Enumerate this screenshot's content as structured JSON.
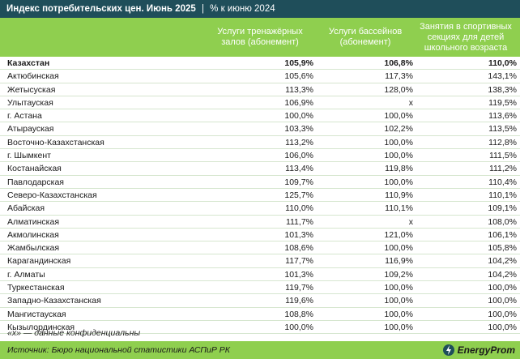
{
  "title": {
    "main": "Индекс потребительских цен. Июнь 2025",
    "separator": "|",
    "sub": "% к июню 2024"
  },
  "columns": [
    "Услуги тренажёрных залов (абонемент)",
    "Услуги бассейнов (абонемент)",
    "Занятия в спортивных секциях для детей школьного возраста"
  ],
  "rows": [
    {
      "region": "Казахстан",
      "gym": "105,9%",
      "pool": "106,8%",
      "sports": "110,0%",
      "bold": true
    },
    {
      "region": "Актюбинская",
      "gym": "105,6%",
      "pool": "117,3%",
      "sports": "143,1%"
    },
    {
      "region": "Жетысуская",
      "gym": "113,3%",
      "pool": "128,0%",
      "sports": "138,3%"
    },
    {
      "region": "Улытауская",
      "gym": "106,9%",
      "pool": "x",
      "sports": "119,5%"
    },
    {
      "region": "г. Астана",
      "gym": "100,0%",
      "pool": "100,0%",
      "sports": "113,6%"
    },
    {
      "region": "Атырауская",
      "gym": "103,3%",
      "pool": "102,2%",
      "sports": "113,5%"
    },
    {
      "region": "Восточно-Казахстанская",
      "gym": "113,2%",
      "pool": "100,0%",
      "sports": "112,8%"
    },
    {
      "region": "г. Шымкент",
      "gym": "106,0%",
      "pool": "100,0%",
      "sports": "111,5%"
    },
    {
      "region": "Костанайская",
      "gym": "113,4%",
      "pool": "119,8%",
      "sports": "111,2%"
    },
    {
      "region": "Павлодарская",
      "gym": "109,7%",
      "pool": "100,0%",
      "sports": "110,4%"
    },
    {
      "region": "Северо-Казахстанская",
      "gym": "125,7%",
      "pool": "110,9%",
      "sports": "110,1%"
    },
    {
      "region": "Абайская",
      "gym": "110,0%",
      "pool": "110,1%",
      "sports": "109,1%"
    },
    {
      "region": "Алматинская",
      "gym": "111,7%",
      "pool": "x",
      "sports": "108,0%"
    },
    {
      "region": "Акмолинская",
      "gym": "101,3%",
      "pool": "121,0%",
      "sports": "106,1%"
    },
    {
      "region": "Жамбылская",
      "gym": "108,6%",
      "pool": "100,0%",
      "sports": "105,8%"
    },
    {
      "region": "Карагандинская",
      "gym": "117,7%",
      "pool": "116,9%",
      "sports": "104,2%"
    },
    {
      "region": "г. Алматы",
      "gym": "101,3%",
      "pool": "109,2%",
      "sports": "104,2%"
    },
    {
      "region": "Туркестанская",
      "gym": "119,7%",
      "pool": "100,0%",
      "sports": "100,0%"
    },
    {
      "region": "Западно-Казахстанская",
      "gym": "119,6%",
      "pool": "100,0%",
      "sports": "100,0%"
    },
    {
      "region": "Мангистауская",
      "gym": "108,8%",
      "pool": "100,0%",
      "sports": "100,0%"
    },
    {
      "region": "Кызылординская",
      "gym": "100,0%",
      "pool": "100,0%",
      "sports": "100,0%"
    }
  ],
  "note": "«x» — данные конфиденциальны",
  "source": "Источник: Бюро национальной статистики АСПиР РК",
  "logo": {
    "text": "EnergyProm",
    "icon": "energyprom-logo-icon"
  },
  "colors": {
    "title_bg": "#1f4e5a",
    "header_bg": "#8fcf4f",
    "row_border": "#d6e6cf"
  }
}
